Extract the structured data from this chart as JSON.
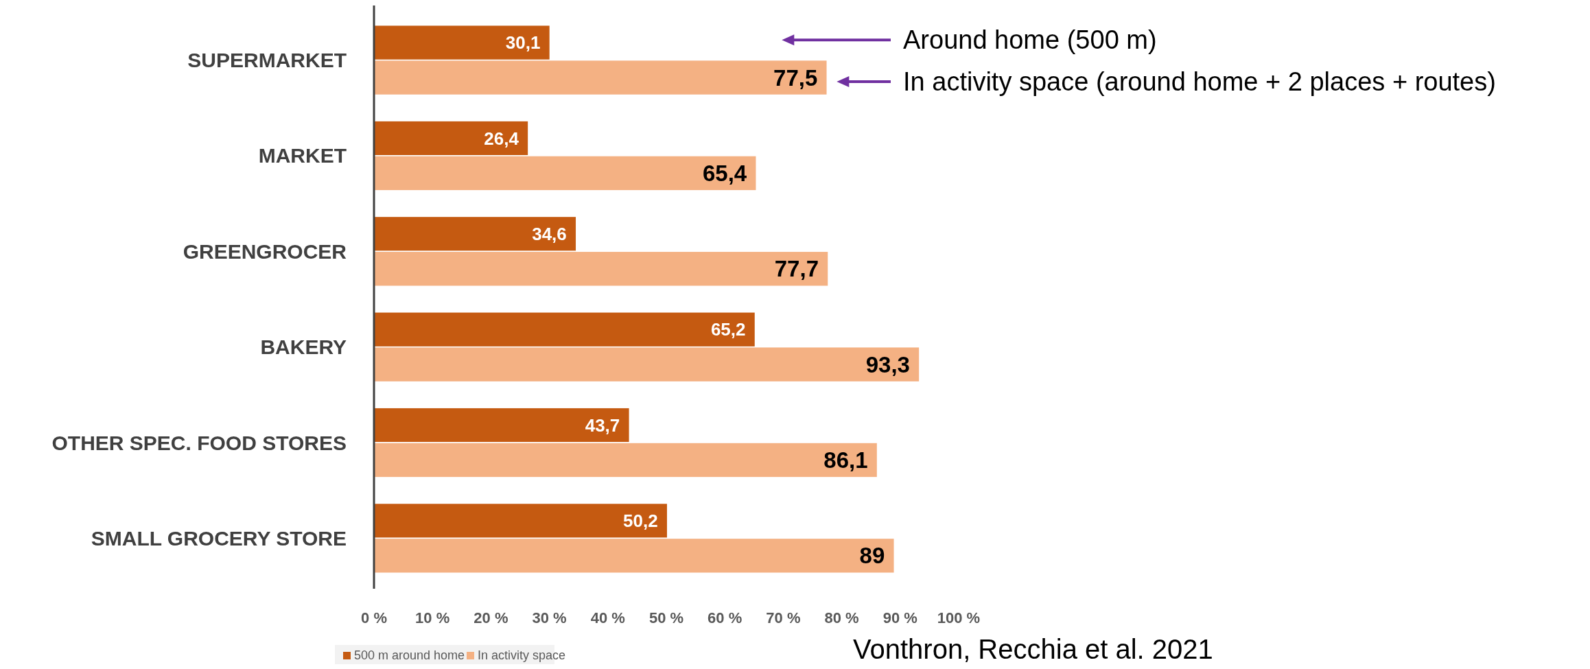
{
  "chart_data": {
    "type": "bar",
    "orientation": "horizontal",
    "categories": [
      "SUPERMARKET",
      "MARKET",
      "GREENGROCER",
      "BAKERY",
      "OTHER SPEC. FOOD STORES",
      "SMALL GROCERY STORE"
    ],
    "series": [
      {
        "name": "500 m around home",
        "color": "#c55a11",
        "values": [
          30.1,
          26.4,
          34.6,
          65.2,
          43.7,
          50.2
        ],
        "value_labels": [
          "30,1",
          "26,4",
          "34,6",
          "65,2",
          "43,7",
          "50,2"
        ]
      },
      {
        "name": "In activity space",
        "color": "#f4b183",
        "values": [
          77.5,
          65.4,
          77.7,
          93.3,
          86.1,
          89
        ],
        "value_labels": [
          "77,5",
          "65,4",
          "77,7",
          "93,3",
          "86,1",
          "89"
        ]
      }
    ],
    "xlim": [
      0,
      100
    ],
    "xticks": [
      {
        "value": 0,
        "label": "0 %"
      },
      {
        "value": 10,
        "label": "10 %"
      },
      {
        "value": 20,
        "label": "20 %"
      },
      {
        "value": 30,
        "label": "30 %"
      },
      {
        "value": 40,
        "label": "40 %"
      },
      {
        "value": 50,
        "label": "50 %"
      },
      {
        "value": 60,
        "label": "60 %"
      },
      {
        "value": 70,
        "label": "70 %"
      },
      {
        "value": 80,
        "label": "80 %"
      },
      {
        "value": 90,
        "label": "90 %"
      },
      {
        "value": 100,
        "label": "100 %"
      }
    ],
    "legend": "bottom left",
    "annotations": [
      "Around home (500 m)",
      "In activity space (around home + 2 places + routes)",
      "Vonthron, Recchia et al. 2021"
    ]
  }
}
